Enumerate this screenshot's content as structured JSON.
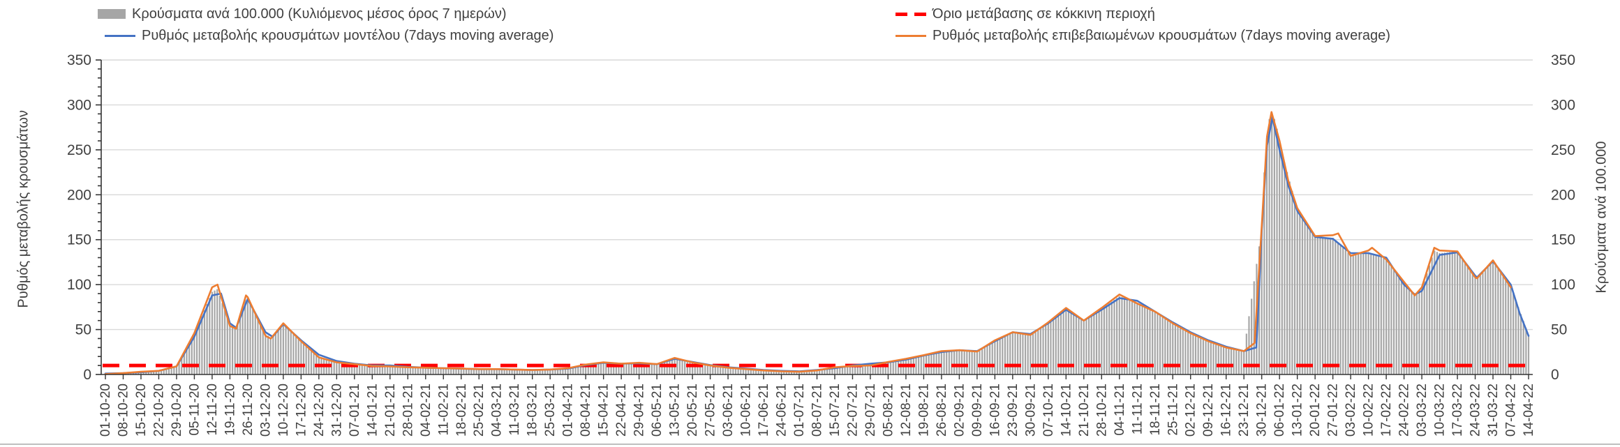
{
  "legend": {
    "cases_bars_label": "Κρούσματα ανά 100.000 (Κυλιόμενος μέσος όρος 7 ημερών)",
    "threshold_label": "Όριο μετάβασης σε κόκκινη περιοχή",
    "model_line_label": "Ρυθμός μεταβολής κρουσμάτων μοντέλου (7days moving average)",
    "confirmed_line_label": "Ρυθμός μεταβολής επιβεβαιωμένων κρουσμάτων (7days moving average)"
  },
  "colors": {
    "bars": "#A6A6A6",
    "model": "#4472C4",
    "confirmed": "#ED7D31",
    "threshold": "#FF0000",
    "gridline": "#D9D9D9",
    "axis": "#404040",
    "text": "#404040"
  },
  "chart_data": {
    "type": "bar",
    "subtype": "daily bars + two 7-day moving-average lines + horizontal threshold",
    "grid": true,
    "legend_position": "top",
    "ylabel": "Ρυθμός μεταβολής κρουσμάτων",
    "ylabel_right": "Κρούσματα ανά 100.000",
    "ylim": [
      0,
      350
    ],
    "y_major_tick": 50,
    "y_minor_tick": 10,
    "y_tick_labels": [
      "0",
      "50",
      "100",
      "150",
      "200",
      "250",
      "300",
      "350"
    ],
    "threshold": {
      "name": "Όριο μετάβασης σε κόκκινη περιοχή",
      "value": 10
    },
    "categories": [
      "01-10-20",
      "08-10-20",
      "15-10-20",
      "22-10-20",
      "29-10-20",
      "05-11-20",
      "12-11-20",
      "19-11-20",
      "26-11-20",
      "03-12-20",
      "10-12-20",
      "17-12-20",
      "24-12-20",
      "31-12-20",
      "07-01-21",
      "14-01-21",
      "21-01-21",
      "28-01-21",
      "04-02-21",
      "11-02-21",
      "18-02-21",
      "25-02-21",
      "04-03-21",
      "11-03-21",
      "18-03-21",
      "25-03-21",
      "01-04-21",
      "08-04-21",
      "15-04-21",
      "22-04-21",
      "29-04-21",
      "06-05-21",
      "13-05-21",
      "20-05-21",
      "27-05-21",
      "03-06-21",
      "10-06-21",
      "17-06-21",
      "24-06-21",
      "01-07-21",
      "08-07-21",
      "15-07-21",
      "22-07-21",
      "29-07-21",
      "05-08-21",
      "12-08-21",
      "19-08-21",
      "26-08-21",
      "02-09-21",
      "09-09-21",
      "16-09-21",
      "23-09-21",
      "30-09-21",
      "07-10-21",
      "14-10-21",
      "21-10-21",
      "28-10-21",
      "04-11-21",
      "11-11-21",
      "18-11-21",
      "25-11-21",
      "02-12-21",
      "09-12-21",
      "16-12-21",
      "23-12-21",
      "30-12-21",
      "06-01-22",
      "13-01-22",
      "20-01-22",
      "27-01-22",
      "03-02-22",
      "10-02-22",
      "17-02-22",
      "24-02-22",
      "03-03-22",
      "10-03-22",
      "17-03-22",
      "24-03-22",
      "31-03-22",
      "07-04-22",
      "14-04-22"
    ],
    "series": [
      {
        "name": "Κρούσματα ανά 100.000 (Κυλιόμενος μέσος όρος 7 ημερών)",
        "type": "bar",
        "values": [
          0.8,
          1.5,
          2.5,
          4,
          9,
          44,
          92,
          55,
          85,
          45,
          56,
          37,
          20,
          14,
          12,
          10,
          9.5,
          8,
          7.5,
          7,
          6.5,
          6,
          6,
          5.5,
          5,
          5.5,
          7,
          11,
          13,
          12,
          12.5,
          11.5,
          18,
          14,
          10,
          8,
          6,
          5,
          4,
          3.5,
          5,
          7.5,
          10,
          11,
          14,
          17,
          21,
          25.5,
          27,
          26,
          37,
          47,
          45,
          57,
          73,
          60,
          73,
          87,
          80,
          70,
          57,
          46,
          37,
          30,
          26,
          162,
          257,
          183,
          153,
          152,
          133,
          136,
          129,
          101,
          95,
          135,
          137,
          109,
          126,
          98,
          44
        ],
        "detail_points": [
          [
            6.3,
            95
          ],
          [
            7.35,
            52
          ],
          [
            7.9,
            86
          ],
          [
            9.3,
            41
          ],
          [
            65.2,
            250
          ],
          [
            65.5,
            295
          ],
          [
            65.8,
            280
          ],
          [
            73.6,
            88
          ],
          [
            74.7,
            138
          ],
          [
            77.1,
            107
          ]
        ]
      },
      {
        "name": "Ρυθμός μεταβολής κρουσμάτων μοντέλου (7days moving average)",
        "type": "line",
        "values": [
          1,
          1.5,
          2.5,
          4,
          9,
          42,
          88,
          57,
          84,
          47,
          56,
          38,
          22,
          15,
          12,
          10,
          10,
          8.5,
          7.5,
          7,
          6.5,
          6,
          6,
          5.5,
          5,
          5.5,
          6.5,
          10.5,
          13,
          12,
          12.5,
          11.5,
          17.5,
          14,
          10.5,
          8,
          6.5,
          5,
          4,
          3.5,
          5,
          7,
          10,
          12,
          13.5,
          16.5,
          21,
          25,
          27,
          26,
          37,
          47,
          45,
          57,
          72,
          60,
          72,
          85,
          82,
          70,
          58,
          47,
          38,
          31,
          26,
          160,
          250,
          182,
          153,
          151,
          135,
          135,
          130,
          100,
          93,
          133,
          136,
          110,
          126,
          100,
          43
        ],
        "detail_points": [
          [
            6.5,
            90
          ],
          [
            7.35,
            52
          ],
          [
            9.4,
            42
          ],
          [
            64.7,
            30
          ],
          [
            65.3,
            255
          ],
          [
            65.6,
            286
          ],
          [
            66.5,
            210
          ],
          [
            73.6,
            89
          ],
          [
            77.1,
            108
          ],
          [
            79.5,
            68
          ]
        ]
      },
      {
        "name": "Ρυθμός μεταβολής επιβεβαιωμένων κρουσμάτων (7days moving average)",
        "type": "line",
        "values": [
          0.5,
          1.5,
          3,
          4,
          9,
          46,
          97,
          54,
          86,
          43,
          57,
          37,
          19,
          13.5,
          11.5,
          9.5,
          9,
          8,
          7.5,
          7,
          6.5,
          6,
          6,
          5.5,
          5,
          5.5,
          7,
          11,
          13.5,
          12,
          13,
          11.5,
          18.5,
          13.5,
          10,
          7.5,
          6,
          4.5,
          3.5,
          3,
          4.5,
          8,
          9.5,
          10,
          14,
          17.5,
          21.5,
          26,
          27,
          25.5,
          38,
          47,
          44,
          58,
          74,
          60,
          74,
          89,
          79,
          70,
          57,
          46,
          37,
          30,
          26,
          165,
          260,
          185,
          154,
          155,
          132,
          138,
          128,
          103,
          97,
          138,
          137,
          108,
          127,
          97,
          null
        ],
        "detail_points": [
          [
            6.3,
            100
          ],
          [
            7.35,
            51
          ],
          [
            7.9,
            88
          ],
          [
            9.3,
            40
          ],
          [
            64.6,
            35
          ],
          [
            65.3,
            265
          ],
          [
            65.55,
            292
          ],
          [
            66.5,
            215
          ],
          [
            69.3,
            157
          ],
          [
            71.2,
            141
          ],
          [
            73.6,
            88
          ],
          [
            74.7,
            141
          ],
          [
            77.1,
            107
          ]
        ]
      }
    ]
  }
}
